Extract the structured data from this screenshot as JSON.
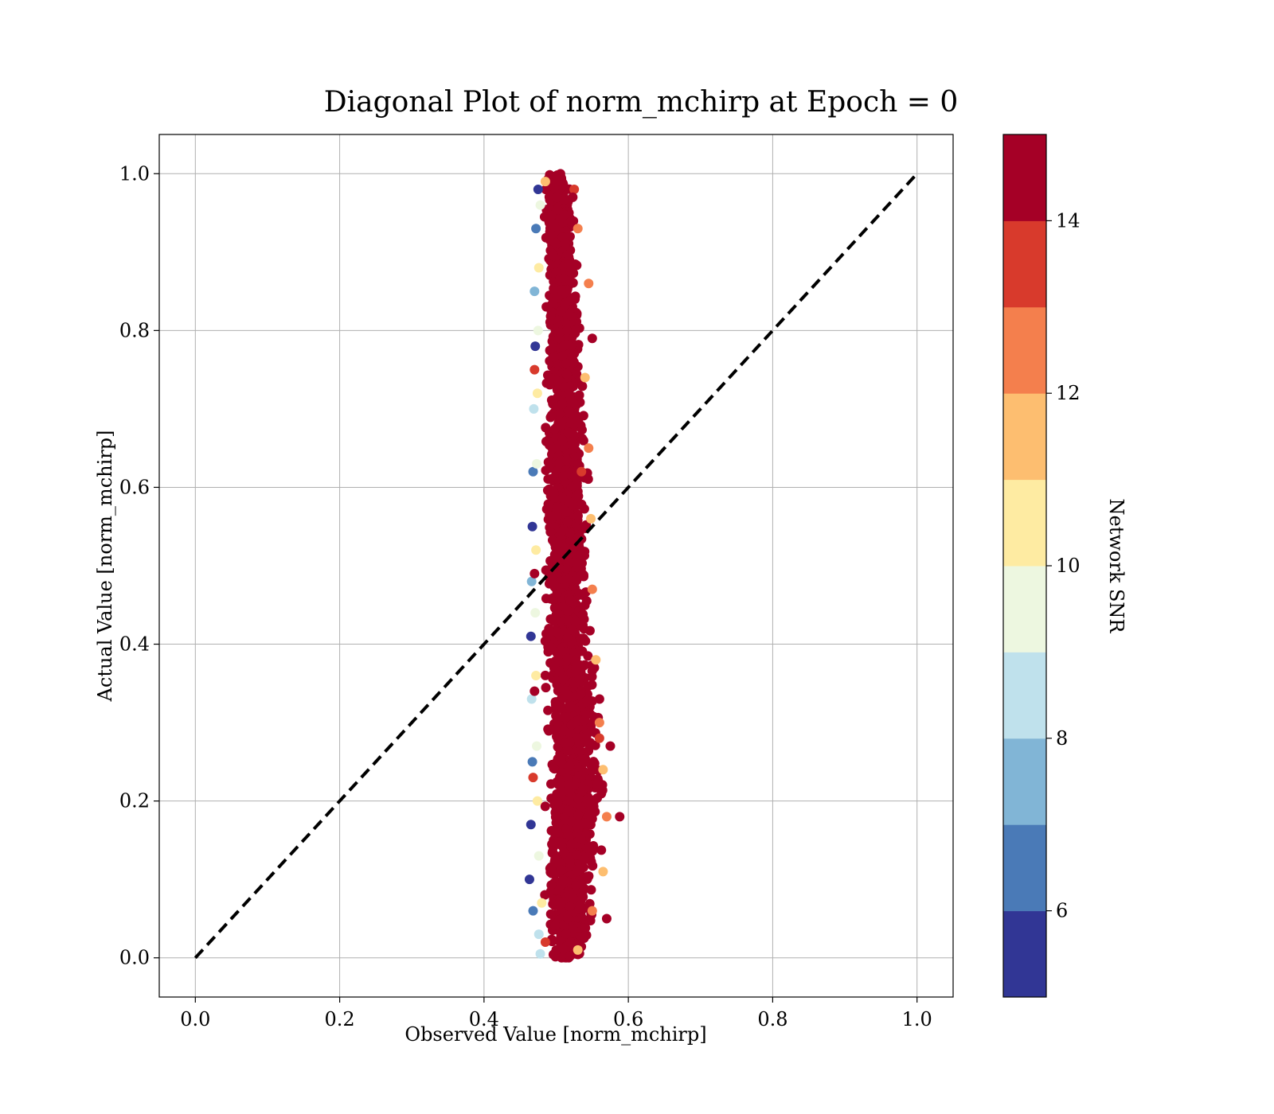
{
  "chart_data": {
    "type": "scatter",
    "title": "Diagonal Plot of norm_mchirp at Epoch = 0",
    "xlabel": "Observed Value [norm_mchirp]",
    "ylabel": "Actual Value [norm_mchirp]",
    "xlim": [
      -0.05,
      1.05
    ],
    "ylim": [
      -0.05,
      1.05
    ],
    "xticks": [
      "0.0",
      "0.2",
      "0.4",
      "0.6",
      "0.8",
      "1.0"
    ],
    "yticks": [
      "0.0",
      "0.2",
      "0.4",
      "0.6",
      "0.8",
      "1.0"
    ],
    "grid": true,
    "reference_line": {
      "x": [
        0.0,
        1.0
      ],
      "y": [
        0.0,
        1.0
      ],
      "style": "dashed",
      "color": "#000000"
    },
    "colorbar": {
      "label": "Network SNR",
      "range": [
        5,
        15
      ],
      "ticks": [
        "6",
        "8",
        "10",
        "12",
        "14"
      ],
      "tick_values": [
        6,
        8,
        10,
        12,
        14
      ],
      "bands": [
        {
          "from": 5,
          "to": 6,
          "color": "#313695"
        },
        {
          "from": 6,
          "to": 7,
          "color": "#4a7ab7"
        },
        {
          "from": 7,
          "to": 8,
          "color": "#81b5d6"
        },
        {
          "from": 8,
          "to": 9,
          "color": "#bfe1ec"
        },
        {
          "from": 9,
          "to": 10,
          "color": "#edf7e0"
        },
        {
          "from": 10,
          "to": 11,
          "color": "#feeba2"
        },
        {
          "from": 11,
          "to": 12,
          "color": "#fdbe70"
        },
        {
          "from": 12,
          "to": 13,
          "color": "#f47f4d"
        },
        {
          "from": 13,
          "to": 14,
          "color": "#d83a2c"
        },
        {
          "from": 14,
          "to": 15,
          "color": "#a50026"
        }
      ]
    },
    "series": [
      {
        "points": [
          {
            "x": 0.475,
            "y": 0.98,
            "snr": 5.5
          },
          {
            "x": 0.472,
            "y": 0.93,
            "snr": 6.2
          },
          {
            "x": 0.47,
            "y": 0.85,
            "snr": 7.5
          },
          {
            "x": 0.471,
            "y": 0.78,
            "snr": 5.8
          },
          {
            "x": 0.469,
            "y": 0.7,
            "snr": 8.4
          },
          {
            "x": 0.468,
            "y": 0.62,
            "snr": 6.6
          },
          {
            "x": 0.467,
            "y": 0.55,
            "snr": 5.4
          },
          {
            "x": 0.466,
            "y": 0.48,
            "snr": 7.2
          },
          {
            "x": 0.465,
            "y": 0.41,
            "snr": 5.9
          },
          {
            "x": 0.466,
            "y": 0.33,
            "snr": 8.7
          },
          {
            "x": 0.467,
            "y": 0.25,
            "snr": 6.4
          },
          {
            "x": 0.465,
            "y": 0.17,
            "snr": 5.3
          },
          {
            "x": 0.463,
            "y": 0.1,
            "snr": 5.6
          },
          {
            "x": 0.468,
            "y": 0.06,
            "snr": 6.9
          },
          {
            "x": 0.476,
            "y": 0.03,
            "snr": 8.2
          },
          {
            "x": 0.478,
            "y": 0.005,
            "snr": 8.6
          },
          {
            "x": 0.478,
            "y": 0.96,
            "snr": 9.5
          },
          {
            "x": 0.476,
            "y": 0.88,
            "snr": 10.3
          },
          {
            "x": 0.475,
            "y": 0.8,
            "snr": 9.8
          },
          {
            "x": 0.474,
            "y": 0.72,
            "snr": 10.6
          },
          {
            "x": 0.473,
            "y": 0.63,
            "snr": 9.3
          },
          {
            "x": 0.472,
            "y": 0.52,
            "snr": 10.8
          },
          {
            "x": 0.471,
            "y": 0.44,
            "snr": 9.6
          },
          {
            "x": 0.472,
            "y": 0.36,
            "snr": 10.2
          },
          {
            "x": 0.473,
            "y": 0.27,
            "snr": 9.1
          },
          {
            "x": 0.474,
            "y": 0.2,
            "snr": 10.5
          },
          {
            "x": 0.476,
            "y": 0.13,
            "snr": 9.7
          },
          {
            "x": 0.48,
            "y": 0.07,
            "snr": 10.9
          },
          {
            "x": 0.485,
            "y": 0.99,
            "snr": 11.4
          },
          {
            "x": 0.53,
            "y": 0.93,
            "snr": 12.6
          },
          {
            "x": 0.545,
            "y": 0.86,
            "snr": 12.2
          },
          {
            "x": 0.54,
            "y": 0.74,
            "snr": 11.6
          },
          {
            "x": 0.545,
            "y": 0.65,
            "snr": 12.8
          },
          {
            "x": 0.548,
            "y": 0.56,
            "snr": 11.3
          },
          {
            "x": 0.55,
            "y": 0.47,
            "snr": 12.4
          },
          {
            "x": 0.555,
            "y": 0.38,
            "snr": 11.8
          },
          {
            "x": 0.56,
            "y": 0.3,
            "snr": 12.9
          },
          {
            "x": 0.565,
            "y": 0.24,
            "snr": 11.5
          },
          {
            "x": 0.57,
            "y": 0.18,
            "snr": 12.3
          },
          {
            "x": 0.565,
            "y": 0.11,
            "snr": 11.9
          },
          {
            "x": 0.55,
            "y": 0.06,
            "snr": 12.7
          },
          {
            "x": 0.53,
            "y": 0.01,
            "snr": 11.2
          },
          {
            "x": 0.47,
            "y": 0.75,
            "snr": 13.2
          },
          {
            "x": 0.468,
            "y": 0.23,
            "snr": 13.5
          },
          {
            "x": 0.535,
            "y": 0.62,
            "snr": 13.4
          },
          {
            "x": 0.56,
            "y": 0.28,
            "snr": 13.7
          },
          {
            "x": 0.485,
            "y": 0.02,
            "snr": 13.3
          },
          {
            "x": 0.525,
            "y": 0.98,
            "snr": 13.8
          },
          {
            "x": 0.523,
            "y": 0.97,
            "snr": 14.6
          },
          {
            "x": 0.55,
            "y": 0.79,
            "snr": 14.8
          },
          {
            "x": 0.56,
            "y": 0.33,
            "snr": 14.5
          },
          {
            "x": 0.575,
            "y": 0.27,
            "snr": 14.9
          },
          {
            "x": 0.588,
            "y": 0.18,
            "snr": 14.7
          },
          {
            "x": 0.57,
            "y": 0.05,
            "snr": 14.4
          },
          {
            "x": 0.5,
            "y": 0.01,
            "snr": 14.6
          },
          {
            "x": 0.47,
            "y": 0.49,
            "snr": 14.3
          },
          {
            "x": 0.47,
            "y": 0.34,
            "snr": 14.8
          }
        ]
      }
    ],
    "density_band": {
      "description_free": true,
      "y": [
        0.0,
        0.05,
        0.1,
        0.15,
        0.2,
        0.25,
        0.3,
        0.35,
        0.4,
        0.45,
        0.5,
        0.55,
        0.6,
        0.65,
        0.7,
        0.75,
        0.8,
        0.85,
        0.9,
        0.95,
        1.0
      ],
      "x_min": [
        0.49,
        0.48,
        0.478,
        0.478,
        0.478,
        0.478,
        0.478,
        0.478,
        0.478,
        0.478,
        0.48,
        0.48,
        0.48,
        0.48,
        0.48,
        0.48,
        0.482,
        0.482,
        0.482,
        0.482,
        0.485
      ],
      "x_max": [
        0.54,
        0.555,
        0.565,
        0.57,
        0.575,
        0.57,
        0.565,
        0.56,
        0.555,
        0.55,
        0.548,
        0.548,
        0.548,
        0.545,
        0.545,
        0.54,
        0.538,
        0.535,
        0.53,
        0.528,
        0.52
      ],
      "snr": 15
    }
  }
}
